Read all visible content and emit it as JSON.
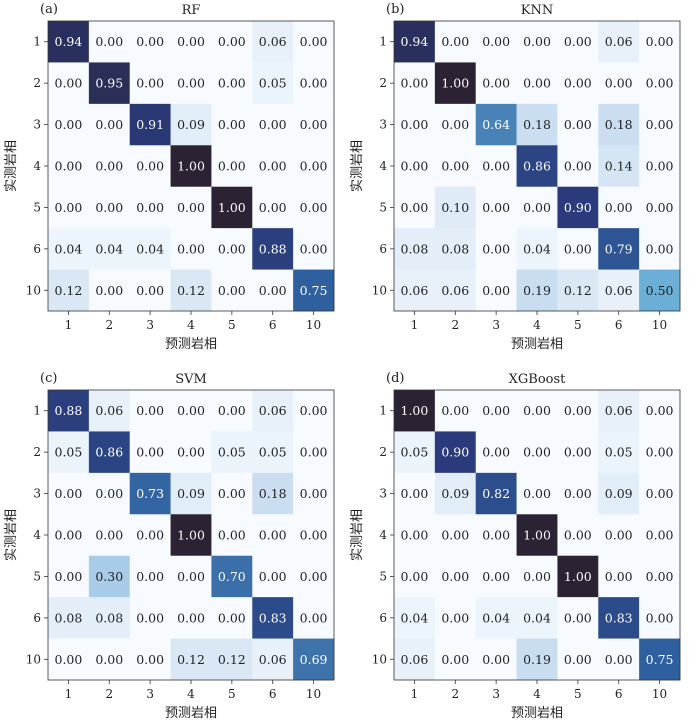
{
  "chart_data": [
    {
      "type": "heatmap",
      "panel_label": "(a)",
      "title": "RF",
      "xlabel": "预测岩相",
      "ylabel": "实测岩相",
      "x_categories": [
        "1",
        "2",
        "3",
        "4",
        "5",
        "6",
        "10"
      ],
      "y_categories": [
        "1",
        "2",
        "3",
        "4",
        "5",
        "6",
        "10"
      ],
      "values": [
        [
          0.94,
          0.0,
          0.0,
          0.0,
          0.0,
          0.06,
          0.0
        ],
        [
          0.0,
          0.95,
          0.0,
          0.0,
          0.0,
          0.05,
          0.0
        ],
        [
          0.0,
          0.0,
          0.91,
          0.09,
          0.0,
          0.0,
          0.0
        ],
        [
          0.0,
          0.0,
          0.0,
          1.0,
          0.0,
          0.0,
          0.0
        ],
        [
          0.0,
          0.0,
          0.0,
          0.0,
          1.0,
          0.0,
          0.0
        ],
        [
          0.04,
          0.04,
          0.04,
          0.0,
          0.0,
          0.88,
          0.0
        ],
        [
          0.12,
          0.0,
          0.0,
          0.12,
          0.0,
          0.0,
          0.75
        ]
      ]
    },
    {
      "type": "heatmap",
      "panel_label": "(b)",
      "title": "KNN",
      "xlabel": "预测岩相",
      "ylabel": "实测岩相",
      "x_categories": [
        "1",
        "2",
        "3",
        "4",
        "5",
        "6",
        "10"
      ],
      "y_categories": [
        "1",
        "2",
        "3",
        "4",
        "5",
        "6",
        "10"
      ],
      "values": [
        [
          0.94,
          0.0,
          0.0,
          0.0,
          0.0,
          0.06,
          0.0
        ],
        [
          0.0,
          1.0,
          0.0,
          0.0,
          0.0,
          0.0,
          0.0
        ],
        [
          0.0,
          0.0,
          0.64,
          0.18,
          0.0,
          0.18,
          0.0
        ],
        [
          0.0,
          0.0,
          0.0,
          0.86,
          0.0,
          0.14,
          0.0
        ],
        [
          0.0,
          0.1,
          0.0,
          0.0,
          0.9,
          0.0,
          0.0
        ],
        [
          0.08,
          0.08,
          0.0,
          0.04,
          0.0,
          0.79,
          0.0
        ],
        [
          0.06,
          0.06,
          0.0,
          0.19,
          0.12,
          0.06,
          0.5
        ]
      ]
    },
    {
      "type": "heatmap",
      "panel_label": "(c)",
      "title": "SVM",
      "xlabel": "预测岩相",
      "ylabel": "实测岩相",
      "x_categories": [
        "1",
        "2",
        "3",
        "4",
        "5",
        "6",
        "10"
      ],
      "y_categories": [
        "1",
        "2",
        "3",
        "4",
        "5",
        "6",
        "10"
      ],
      "values": [
        [
          0.88,
          0.06,
          0.0,
          0.0,
          0.0,
          0.06,
          0.0
        ],
        [
          0.05,
          0.86,
          0.0,
          0.0,
          0.05,
          0.05,
          0.0
        ],
        [
          0.0,
          0.0,
          0.73,
          0.09,
          0.0,
          0.18,
          0.0
        ],
        [
          0.0,
          0.0,
          0.0,
          1.0,
          0.0,
          0.0,
          0.0
        ],
        [
          0.0,
          0.3,
          0.0,
          0.0,
          0.7,
          0.0,
          0.0
        ],
        [
          0.08,
          0.08,
          0.0,
          0.0,
          0.0,
          0.83,
          0.0
        ],
        [
          0.0,
          0.0,
          0.0,
          0.12,
          0.12,
          0.06,
          0.69
        ]
      ]
    },
    {
      "type": "heatmap",
      "panel_label": "(d)",
      "title": "XGBoost",
      "xlabel": "预测岩相",
      "ylabel": "实测岩相",
      "x_categories": [
        "1",
        "2",
        "3",
        "4",
        "5",
        "6",
        "10"
      ],
      "y_categories": [
        "1",
        "2",
        "3",
        "4",
        "5",
        "6",
        "10"
      ],
      "values": [
        [
          1.0,
          0.0,
          0.0,
          0.0,
          0.0,
          0.06,
          0.0
        ],
        [
          0.05,
          0.9,
          0.0,
          0.0,
          0.0,
          0.05,
          0.0
        ],
        [
          0.0,
          0.09,
          0.82,
          0.0,
          0.0,
          0.09,
          0.0
        ],
        [
          0.0,
          0.0,
          0.0,
          1.0,
          0.0,
          0.0,
          0.0
        ],
        [
          0.0,
          0.0,
          0.0,
          0.0,
          1.0,
          0.0,
          0.0
        ],
        [
          0.04,
          0.0,
          0.04,
          0.04,
          0.0,
          0.83,
          0.0
        ],
        [
          0.06,
          0.0,
          0.0,
          0.19,
          0.0,
          0.0,
          0.75
        ]
      ]
    }
  ],
  "colors": {
    "scale_low": "#f7fbff",
    "scale_mid_1": "#c6dbef",
    "scale_mid_2": "#6baed6",
    "scale_mid_3": "#2e5f9e",
    "scale_mid_4": "#2a3a7a",
    "scale_high": "#2b2233",
    "text_dark": "#222222",
    "text_light": "#ffffff"
  }
}
